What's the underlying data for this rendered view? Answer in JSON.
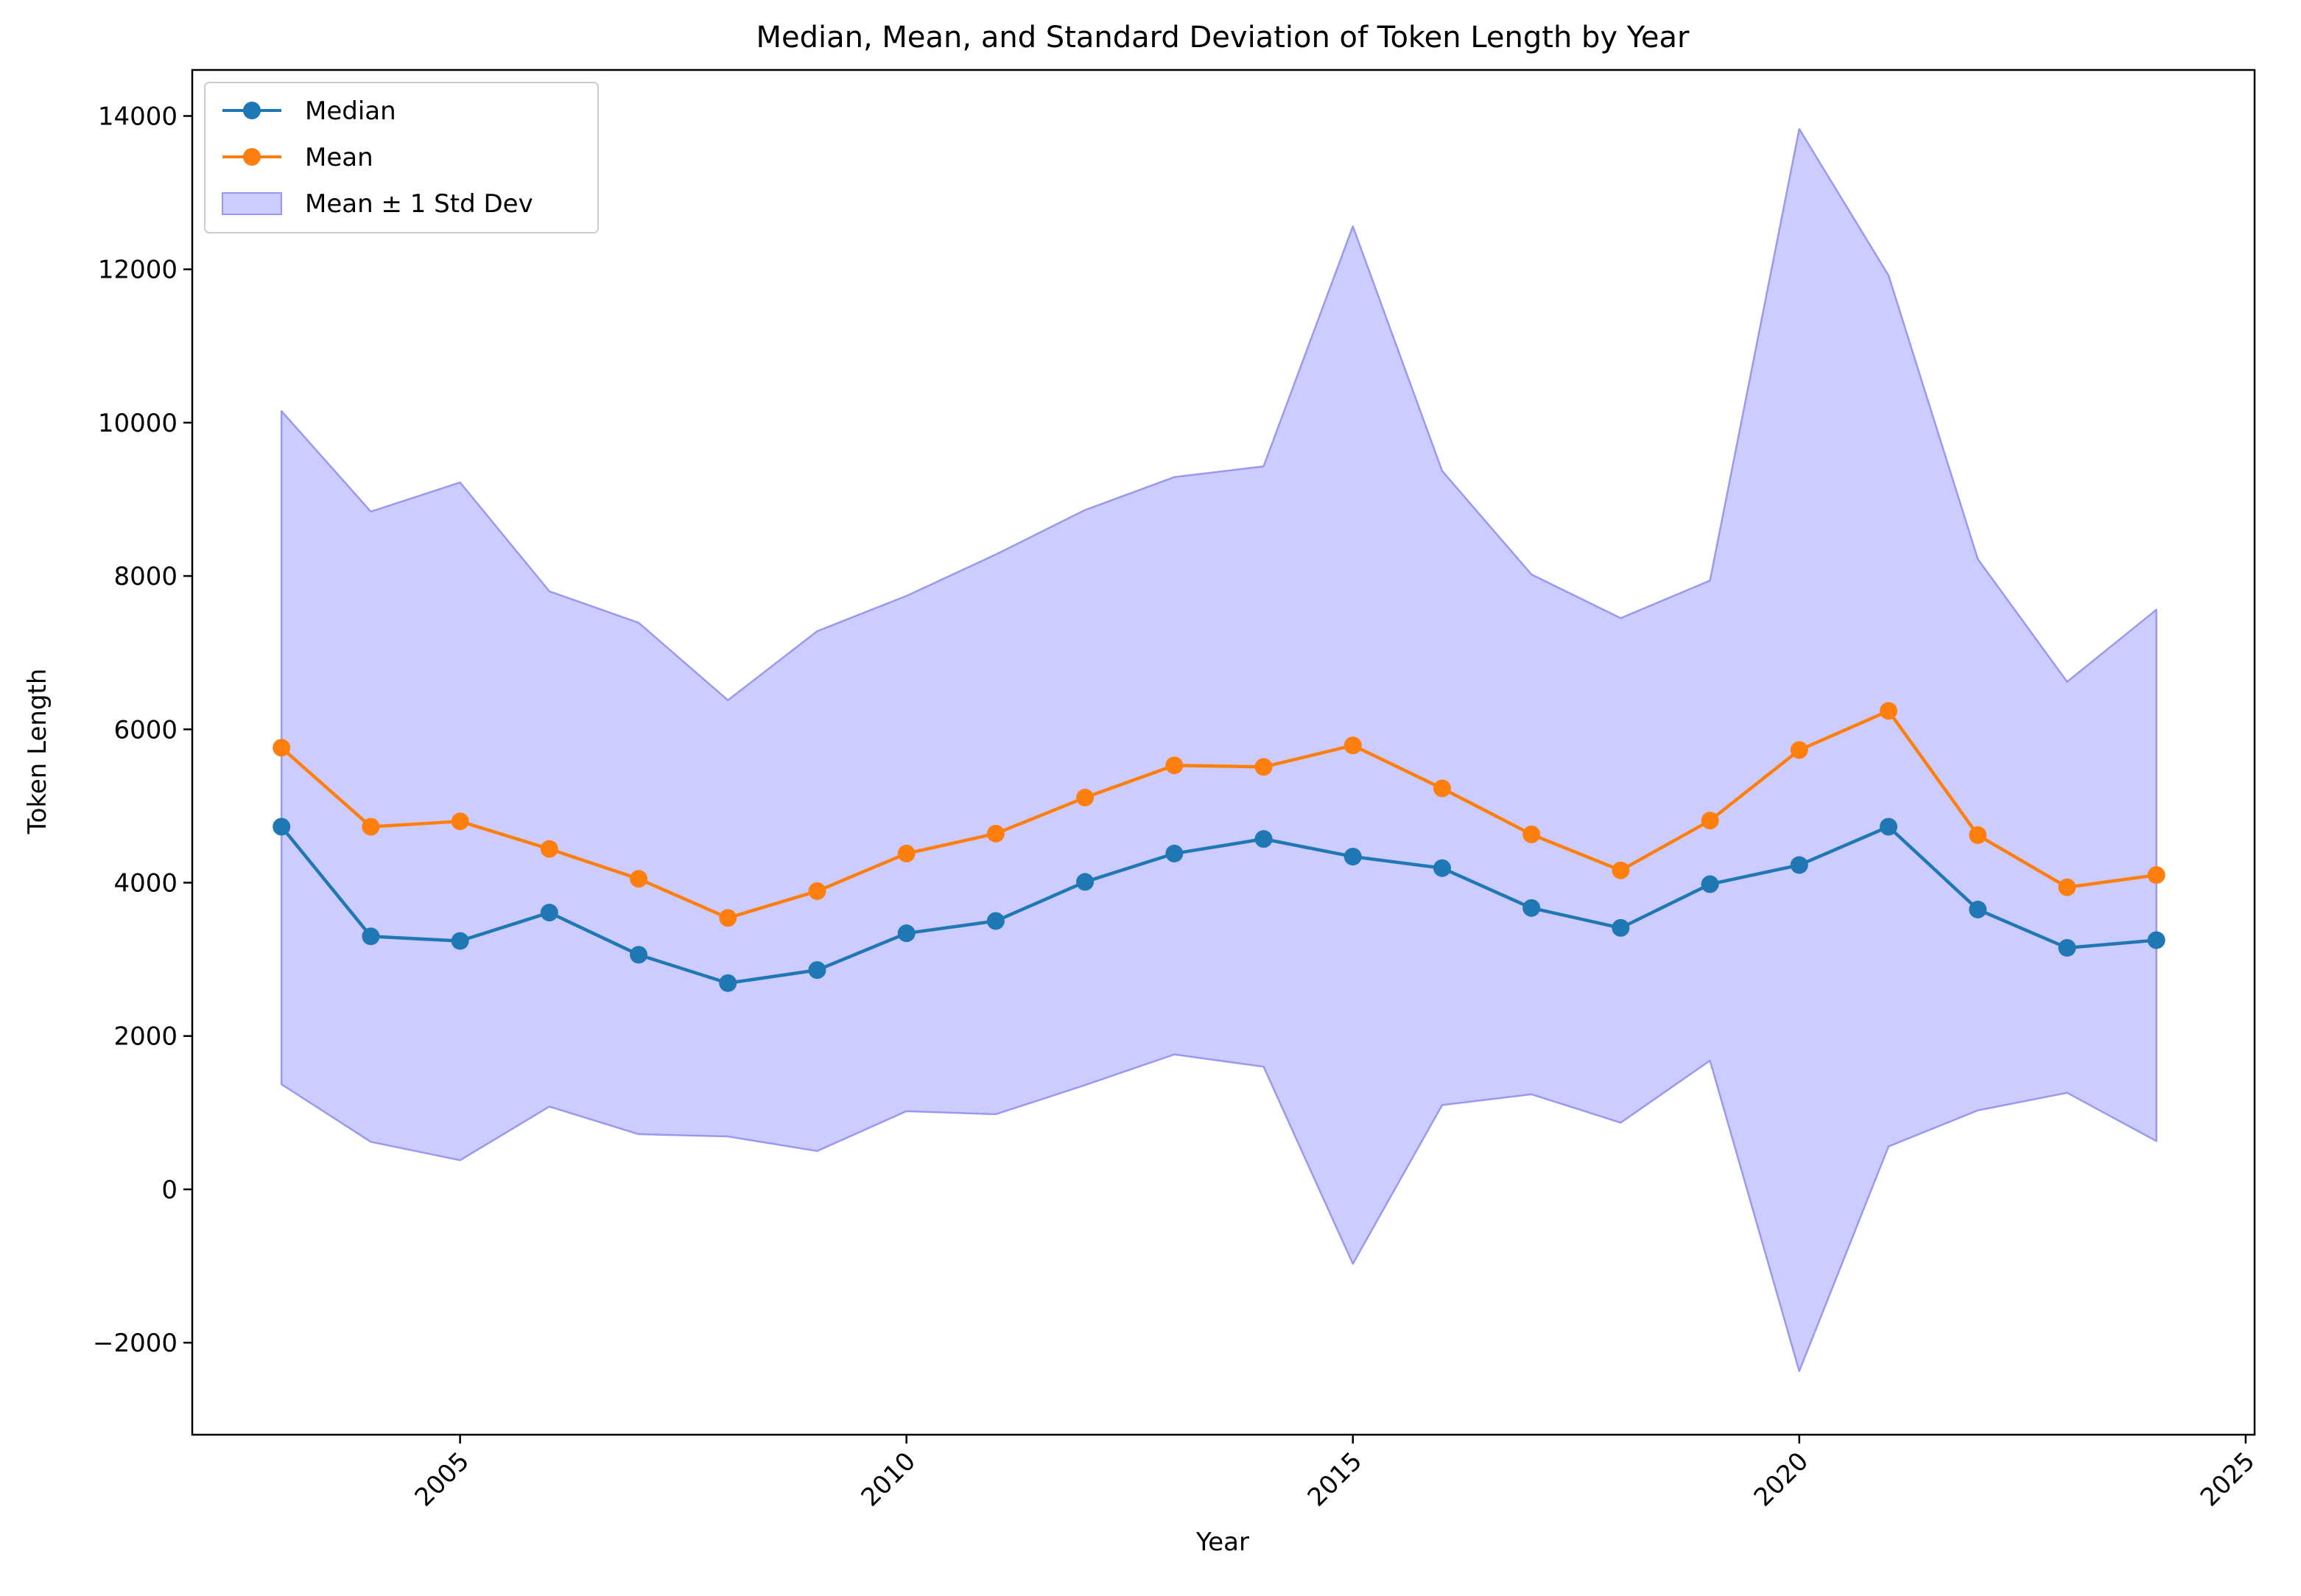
{
  "chart_data": {
    "type": "line",
    "title": "Median, Mean, and Standard Deviation of Token Length by Year",
    "xlabel": "Year",
    "ylabel": "Token Length",
    "xlim": [
      2002.0,
      2025.1
    ],
    "ylim": [
      -3200,
      14600
    ],
    "x_ticks": [
      2005,
      2010,
      2015,
      2020,
      2025
    ],
    "y_ticks": [
      -2000,
      0,
      2000,
      4000,
      6000,
      8000,
      10000,
      12000,
      14000
    ],
    "x_tick_labels": [
      "2005",
      "2010",
      "2015",
      "2020",
      "2025"
    ],
    "y_tick_labels": [
      "−2000",
      "0",
      "2000",
      "4000",
      "6000",
      "8000",
      "10000",
      "12000",
      "14000"
    ],
    "grid": false,
    "legend_position": "upper left",
    "x": [
      2003,
      2004,
      2005,
      2006,
      2007,
      2008,
      2009,
      2010,
      2011,
      2012,
      2013,
      2014,
      2015,
      2016,
      2017,
      2018,
      2019,
      2020,
      2021,
      2022,
      2023,
      2024
    ],
    "series": [
      {
        "name": "Median",
        "color": "#1f77b4",
        "marker": "circle",
        "values": [
          4730,
          3300,
          3240,
          3610,
          3060,
          2690,
          2860,
          3340,
          3500,
          4010,
          4380,
          4570,
          4340,
          4190,
          3670,
          3410,
          3980,
          4230,
          4730,
          3650,
          3150,
          3250
        ]
      },
      {
        "name": "Mean",
        "color": "#ff7f0e",
        "marker": "circle",
        "values": [
          5760,
          4730,
          4800,
          4440,
          4050,
          3540,
          3890,
          4380,
          4640,
          5110,
          5530,
          5510,
          5790,
          5230,
          4630,
          4160,
          4810,
          5730,
          6240,
          4620,
          3940,
          4100
        ]
      }
    ],
    "band": {
      "name": "Mean ± 1 Std Dev",
      "fill_color": "#ccccff",
      "edge_color": "#9999f0",
      "upper": [
        10150,
        8840,
        9220,
        7800,
        7390,
        6380,
        7280,
        7740,
        8280,
        8860,
        9290,
        9430,
        12560,
        9370,
        8020,
        7450,
        7940,
        13830,
        11920,
        8220,
        6620,
        7560
      ],
      "lower": [
        1370,
        620,
        380,
        1080,
        720,
        690,
        500,
        1020,
        980,
        1360,
        1760,
        1600,
        -970,
        1100,
        1240,
        870,
        1680,
        -2370,
        560,
        1030,
        1260,
        630
      ]
    }
  }
}
